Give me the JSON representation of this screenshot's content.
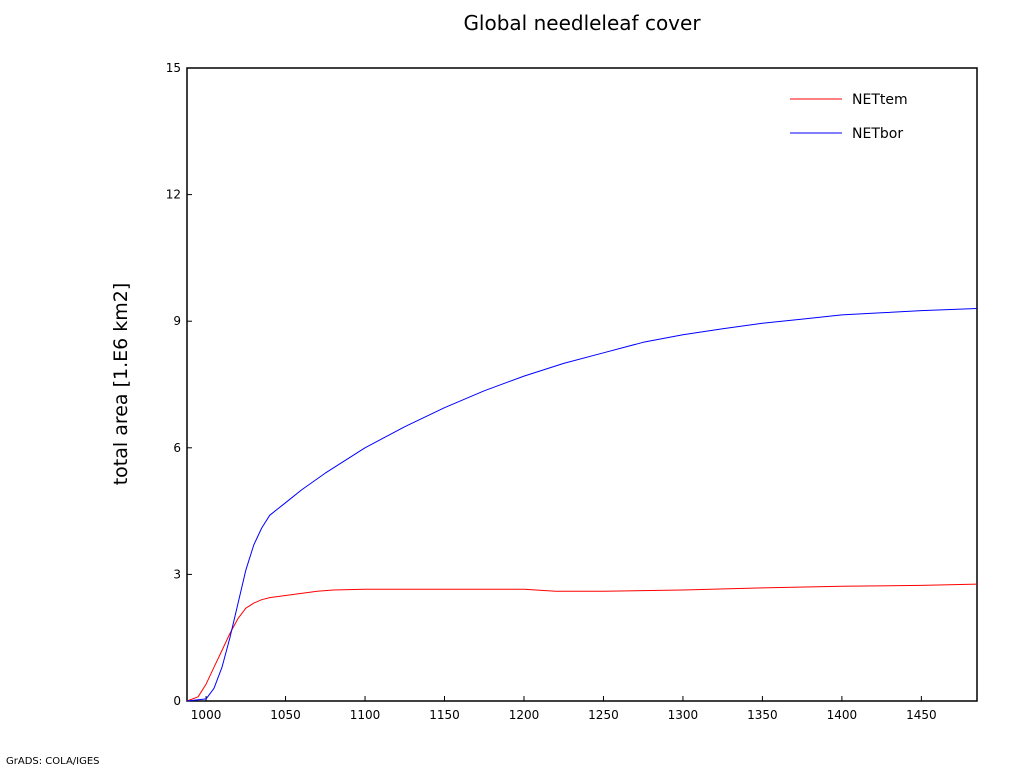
{
  "chart_data": {
    "type": "line",
    "title": "Global needleleaf cover",
    "xlabel": "",
    "ylabel": "total area [1.E6 km2]",
    "xlim": [
      988,
      1485
    ],
    "ylim": [
      0,
      15
    ],
    "xticks": [
      1000,
      1050,
      1100,
      1150,
      1200,
      1250,
      1300,
      1350,
      1400,
      1450
    ],
    "yticks": [
      0,
      3,
      6,
      9,
      12,
      15
    ],
    "grid": false,
    "legend_position": "top-right",
    "series": [
      {
        "name": "NETtem",
        "color": "#ff0000",
        "x": [
          988,
          995,
          1000,
          1005,
          1010,
          1015,
          1020,
          1025,
          1030,
          1035,
          1040,
          1050,
          1060,
          1070,
          1080,
          1100,
          1150,
          1200,
          1220,
          1250,
          1300,
          1350,
          1400,
          1450,
          1485
        ],
        "y": [
          0,
          0.1,
          0.4,
          0.8,
          1.2,
          1.6,
          1.95,
          2.2,
          2.32,
          2.4,
          2.45,
          2.5,
          2.55,
          2.6,
          2.63,
          2.65,
          2.65,
          2.65,
          2.6,
          2.6,
          2.63,
          2.68,
          2.72,
          2.74,
          2.77
        ]
      },
      {
        "name": "NETbor",
        "color": "#0000ff",
        "x": [
          988,
          1000,
          1005,
          1010,
          1015,
          1020,
          1025,
          1030,
          1035,
          1040,
          1045,
          1050,
          1060,
          1075,
          1100,
          1125,
          1150,
          1175,
          1200,
          1225,
          1250,
          1275,
          1300,
          1325,
          1350,
          1375,
          1400,
          1425,
          1450,
          1485
        ],
        "y": [
          0,
          0.05,
          0.3,
          0.8,
          1.5,
          2.3,
          3.1,
          3.7,
          4.1,
          4.4,
          4.55,
          4.7,
          5.0,
          5.4,
          6.0,
          6.5,
          6.95,
          7.35,
          7.7,
          8.0,
          8.25,
          8.5,
          8.68,
          8.82,
          8.95,
          9.05,
          9.15,
          9.2,
          9.25,
          9.3
        ]
      }
    ]
  },
  "footer": "GrADS: COLA/IGES"
}
